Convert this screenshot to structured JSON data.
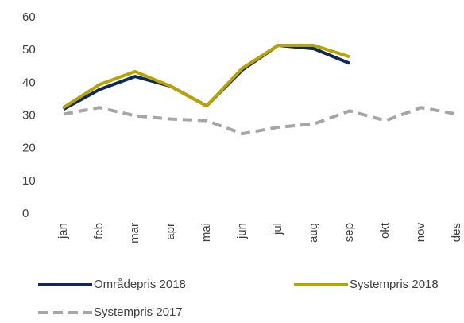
{
  "chart_data": {
    "type": "line",
    "categories": [
      "jan",
      "feb",
      "mar",
      "apr",
      "mai",
      "jun",
      "jul",
      "aug",
      "sep",
      "okt",
      "nov",
      "des"
    ],
    "series": [
      {
        "name": "Områdepris 2018",
        "color": "#0d2a5c",
        "dash": false,
        "values": [
          32,
          38,
          42,
          39,
          33,
          44,
          51.5,
          50.5,
          46,
          null,
          null,
          null
        ]
      },
      {
        "name": "Systempris 2018",
        "color": "#b8a300",
        "dash": false,
        "values": [
          32.5,
          39.5,
          43.5,
          39,
          33,
          44.5,
          51.5,
          51.5,
          48,
          null,
          null,
          null
        ]
      },
      {
        "name": "Systempris 2017",
        "color": "#a6a6a6",
        "dash": true,
        "values": [
          30.5,
          32.5,
          30,
          29,
          28.5,
          24.5,
          26.5,
          27.5,
          31.5,
          28.5,
          32.5,
          30.5
        ]
      }
    ],
    "ylim": [
      0,
      60
    ],
    "yticks": [
      0,
      10,
      20,
      30,
      40,
      50,
      60
    ],
    "grid": false,
    "legend": "bottom"
  }
}
